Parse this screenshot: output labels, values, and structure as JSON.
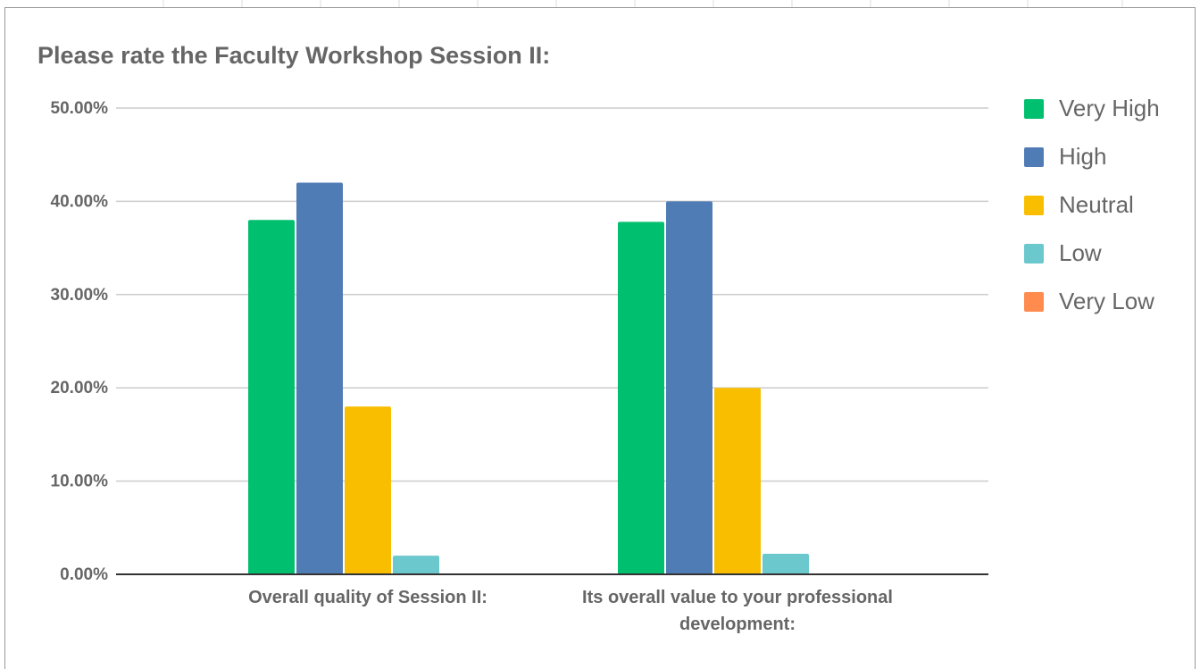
{
  "chart_data": {
    "type": "bar",
    "title": "Please rate the Faculty Workshop Session II:",
    "categories": [
      "Overall quality of Session II:",
      "Its overall value to your professional development:"
    ],
    "series": [
      {
        "name": "Very High",
        "color": "#00bf6f",
        "values": [
          38,
          37.8
        ]
      },
      {
        "name": "High",
        "color": "#507cb6",
        "values": [
          42,
          40
        ]
      },
      {
        "name": "Neutral",
        "color": "#f9be00",
        "values": [
          18,
          20
        ]
      },
      {
        "name": "Low",
        "color": "#6bc8cd",
        "values": [
          2,
          2.2
        ]
      },
      {
        "name": "Very Low",
        "color": "#ff8b4f",
        "values": [
          0,
          0
        ]
      }
    ],
    "ylim": [
      0,
      50
    ],
    "yticks": [
      {
        "value": 0,
        "label": "0.00%"
      },
      {
        "value": 10,
        "label": "10.00%"
      },
      {
        "value": 20,
        "label": "20.00%"
      },
      {
        "value": 30,
        "label": "30.00%"
      },
      {
        "value": 40,
        "label": "40.00%"
      },
      {
        "value": 50,
        "label": "50.00%"
      }
    ],
    "grid": true,
    "legend": "right"
  }
}
